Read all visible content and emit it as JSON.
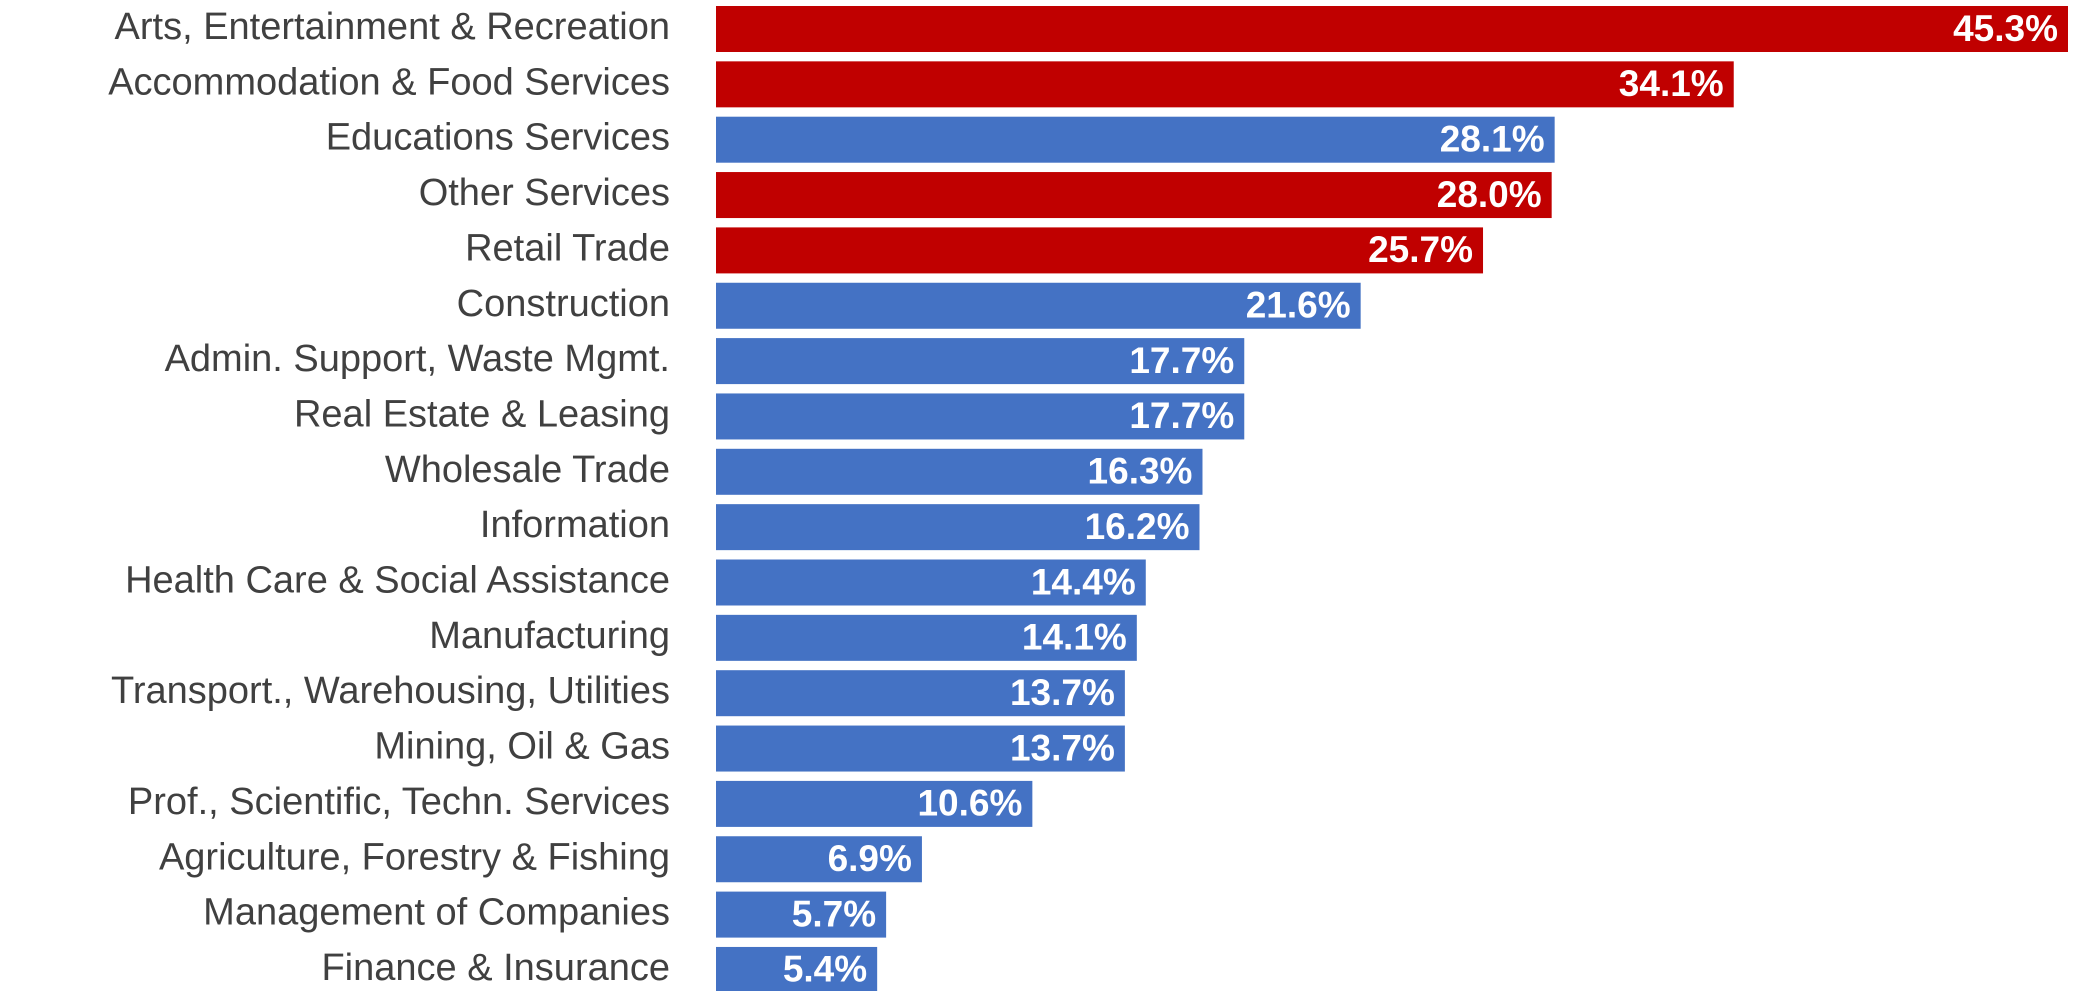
{
  "chart_data": {
    "type": "barh",
    "categories": [
      "Arts, Entertainment & Recreation",
      "Accommodation & Food Services",
      "Educations Services",
      "Other Services",
      "Retail Trade",
      "Construction",
      "Admin. Support, Waste Mgmt.",
      "Real Estate & Leasing",
      "Wholesale Trade",
      "Information",
      "Health Care & Social Assistance",
      "Manufacturing",
      "Transport., Warehousing, Utilities",
      "Mining, Oil & Gas",
      "Prof., Scientific, Techn. Services",
      "Agriculture, Forestry & Fishing",
      "Management of Companies",
      "Finance & Insurance"
    ],
    "values": [
      45.3,
      34.1,
      28.1,
      28.0,
      25.7,
      21.6,
      17.7,
      17.7,
      16.3,
      16.2,
      14.4,
      14.1,
      13.7,
      13.7,
      10.6,
      6.9,
      5.7,
      5.4
    ],
    "value_labels": [
      "45.3%",
      "34.1%",
      "28.1%",
      "28.0%",
      "25.7%",
      "21.6%",
      "17.7%",
      "17.7%",
      "16.3%",
      "16.2%",
      "14.4%",
      "14.1%",
      "13.7%",
      "13.7%",
      "10.6%",
      "6.9%",
      "5.7%",
      "5.4%"
    ],
    "colors": [
      "#c00000",
      "#c00000",
      "#4472c4",
      "#c00000",
      "#c00000",
      "#4472c4",
      "#4472c4",
      "#4472c4",
      "#4472c4",
      "#4472c4",
      "#4472c4",
      "#4472c4",
      "#4472c4",
      "#4472c4",
      "#4472c4",
      "#4472c4",
      "#4472c4",
      "#4472c4"
    ],
    "xlim": [
      0,
      45.3
    ]
  }
}
